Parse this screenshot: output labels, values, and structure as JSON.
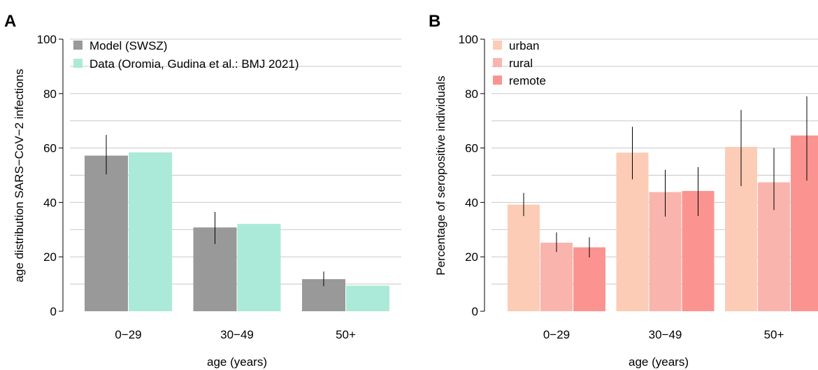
{
  "chart_data": [
    {
      "type": "bar",
      "panel_label": "A",
      "categories": [
        "0−29",
        "30−49",
        "50+"
      ],
      "series": [
        {
          "name": "Model (SWSZ)",
          "color": "#999999",
          "values": [
            57.2,
            30.8,
            11.8
          ],
          "error_low": [
            50.3,
            24.7,
            9.2
          ],
          "error_high": [
            64.8,
            36.5,
            14.6
          ]
        },
        {
          "name": "Data (Oromia, Gudina et al.: BMJ 2021)",
          "color": "#abead8",
          "values": [
            58.4,
            32.1,
            9.4
          ]
        }
      ],
      "ylabel": "age distribution SARS−CoV−2 infections",
      "xlabel": "age (years)",
      "ylim": [
        0,
        100
      ],
      "yticks": [
        0,
        20,
        40,
        60,
        80,
        100
      ],
      "grid": "horizontal",
      "legend": "top-left"
    },
    {
      "type": "bar",
      "panel_label": "B",
      "categories": [
        "0−29",
        "30−49",
        "50+"
      ],
      "series": [
        {
          "name": "urban",
          "color": "#fcccb6",
          "values": [
            39.2,
            58.3,
            60.4
          ],
          "error_low": [
            35.0,
            48.5,
            46.0
          ],
          "error_high": [
            43.5,
            67.8,
            74.0
          ]
        },
        {
          "name": "rural",
          "color": "#fab4ae",
          "values": [
            25.2,
            43.8,
            47.4
          ],
          "error_low": [
            21.8,
            34.8,
            37.2
          ],
          "error_high": [
            29.0,
            52.0,
            60.0
          ]
        },
        {
          "name": "remote",
          "color": "#fb9490",
          "values": [
            23.5,
            44.2,
            64.6
          ],
          "error_low": [
            19.8,
            35.0,
            48.0
          ],
          "error_high": [
            27.2,
            53.0,
            79.0
          ]
        }
      ],
      "ylabel": "Percentage of seropositive individuals",
      "xlabel": "age (years)",
      "ylim": [
        0,
        100
      ],
      "yticks": [
        0,
        20,
        40,
        60,
        80,
        100
      ],
      "grid": "horizontal",
      "legend": "top-left"
    }
  ]
}
